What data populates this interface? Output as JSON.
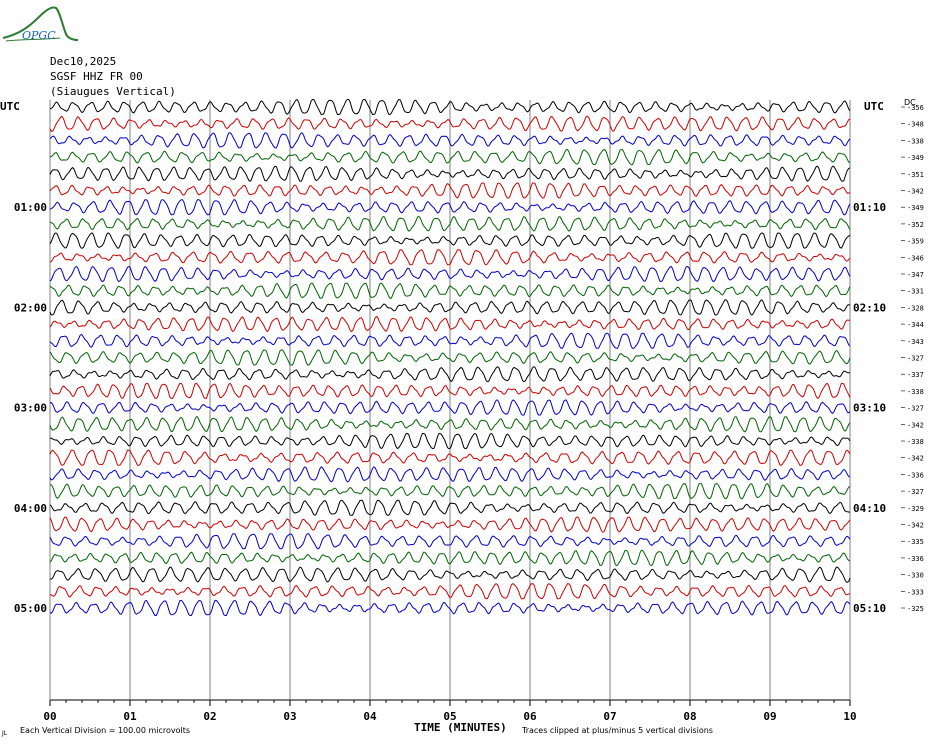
{
  "header": {
    "logo_text": "OPGC",
    "date": "Dec10,2025",
    "station": "SGSF HHZ FR 00",
    "location": "(Siaugues Vertical)",
    "left_tz": "UTC",
    "right_tz": "UTC",
    "dc_label": "DC"
  },
  "footer": {
    "scale_note": "Each Vertical Division = 100.00 microvolts",
    "clip_note": "Traces clipped at plus/minus 5 vertical divisions",
    "corner_mark": "JL"
  },
  "colors": {
    "trace_cycle": [
      "#000000",
      "#d00000",
      "#0000cc",
      "#006400"
    ],
    "grid": "#808080",
    "logo": "#2e7d32"
  },
  "chart_data": {
    "type": "line",
    "title": "",
    "xlabel": "TIME (MINUTES)",
    "ylabel": "",
    "xlim": [
      0,
      10
    ],
    "x_ticks": [
      "00",
      "01",
      "02",
      "03",
      "04",
      "05",
      "06",
      "07",
      "08",
      "09",
      "10"
    ],
    "left_hour_labels": [
      "01:00",
      "02:00",
      "03:00",
      "04:00",
      "05:00"
    ],
    "right_hour_labels": [
      "01:10",
      "02:10",
      "03:10",
      "04:10",
      "05:10"
    ],
    "hour_label_trace_index": [
      6,
      12,
      18,
      24,
      30
    ],
    "dc_offsets": [
      356,
      348,
      338,
      349,
      351,
      342,
      349,
      352,
      359,
      346,
      347,
      331,
      328,
      344,
      343,
      327,
      337,
      338,
      327,
      342,
      338,
      342,
      336,
      327,
      329,
      342,
      335,
      336,
      330,
      333,
      325
    ],
    "trace_count": 31,
    "minutes_per_trace": 10,
    "grid": true,
    "legend": "none"
  }
}
